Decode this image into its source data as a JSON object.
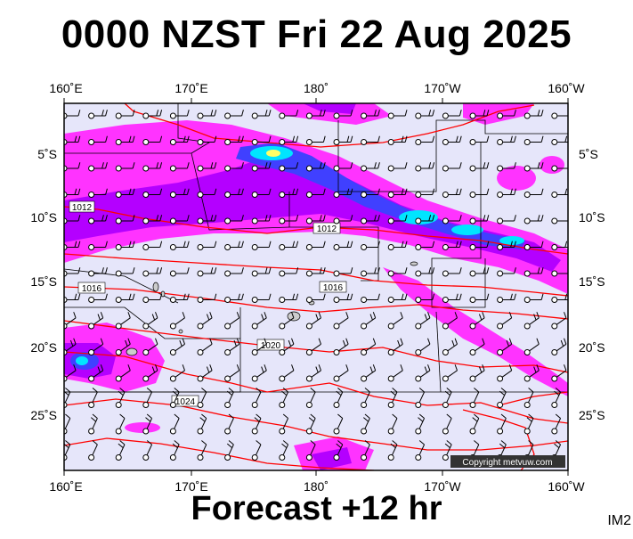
{
  "title": "0000 NZST Fri 22 Aug 2025",
  "footer": "Forecast +12 hr",
  "corner_label": "IM2",
  "copyright": "Copyright metvuw.com",
  "map": {
    "lon_labels": [
      "160˚E",
      "170˚E",
      "180˚",
      "170˚W",
      "160˚W"
    ],
    "lat_labels": [
      "5˚S",
      "10˚S",
      "15˚S",
      "20˚S",
      "25˚S"
    ],
    "isobars": [
      {
        "label": "1012"
      },
      {
        "label": "1012"
      },
      {
        "label": "1016"
      },
      {
        "label": "1016"
      },
      {
        "label": "1020"
      },
      {
        "label": "1024"
      }
    ],
    "colors": {
      "background": "#e6e6fa",
      "isobar": "#ff0000",
      "rain_light": "#ff33ff",
      "rain_medium": "#b400ff",
      "rain_heavy": "#4040ff",
      "rain_extreme": "#00e5ff",
      "rain_peak": "#ffff66",
      "border": "#000000"
    }
  }
}
